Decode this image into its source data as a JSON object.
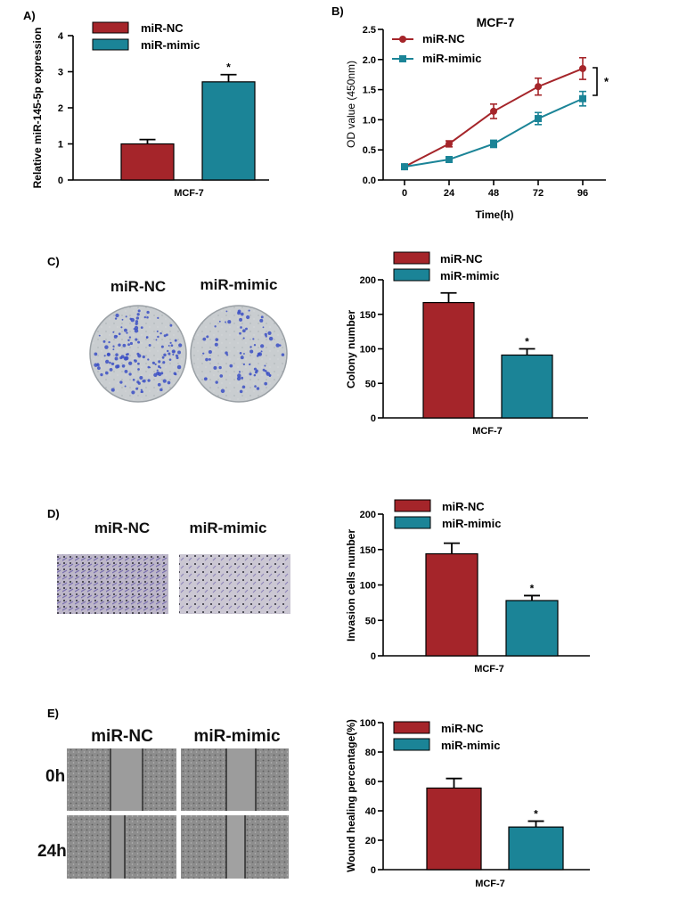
{
  "colors": {
    "nc": "#a5252a",
    "mimic": "#1b8497",
    "axis": "#000000"
  },
  "chart_data": [
    {
      "panel": "A)",
      "type": "bar",
      "categories": [
        "miR-NC",
        "miR-mimic"
      ],
      "values": [
        1.0,
        2.72
      ],
      "errors": [
        0.12,
        0.2
      ],
      "xlabel": "MCF-7",
      "ylabel": "Relative miR-145-5p expression",
      "ylim": [
        0,
        4
      ],
      "yticks": [
        "0",
        "1",
        "2",
        "3",
        "4"
      ],
      "legend": [
        "miR-NC",
        "miR-mimic"
      ],
      "significance": "*"
    },
    {
      "panel": "B)",
      "type": "line",
      "title": "MCF-7",
      "x": [
        0,
        24,
        48,
        72,
        96
      ],
      "xticks": [
        "0",
        "24",
        "48",
        "72",
        "96"
      ],
      "series": [
        {
          "name": "miR-NC",
          "values": [
            0.22,
            0.6,
            1.14,
            1.55,
            1.85
          ],
          "errors": [
            0.03,
            0.05,
            0.12,
            0.14,
            0.18
          ]
        },
        {
          "name": "miR-mimic",
          "values": [
            0.22,
            0.34,
            0.6,
            1.02,
            1.35
          ],
          "errors": [
            0.03,
            0.04,
            0.06,
            0.1,
            0.12
          ]
        }
      ],
      "xlabel": "Time(h)",
      "ylabel": "OD value (450nm)",
      "ylim": [
        0,
        2.5
      ],
      "yticks": [
        "0.0",
        "0.5",
        "1.0",
        "1.5",
        "2.0",
        "2.5"
      ],
      "significance": "*"
    },
    {
      "panel": "C)",
      "type": "bar",
      "categories": [
        "miR-NC",
        "miR-mimic"
      ],
      "values": [
        167,
        91
      ],
      "errors": [
        14,
        9
      ],
      "xlabel": "MCF-7",
      "ylabel": "Colony number",
      "ylim": [
        0,
        200
      ],
      "yticks": [
        "0",
        "50",
        "100",
        "150",
        "200"
      ],
      "legend": [
        "miR-NC",
        "miR-mimic"
      ],
      "significance": "*",
      "image_labels": [
        "miR-NC",
        "miR-mimic"
      ]
    },
    {
      "panel": "D)",
      "type": "bar",
      "categories": [
        "miR-NC",
        "miR-mimic"
      ],
      "values": [
        144,
        78
      ],
      "errors": [
        15,
        7
      ],
      "xlabel": "MCF-7",
      "ylabel": "Invasion cells number",
      "ylim": [
        0,
        200
      ],
      "yticks": [
        "0",
        "50",
        "100",
        "150",
        "200"
      ],
      "legend": [
        "miR-NC",
        "miR-mimic"
      ],
      "significance": "*",
      "image_labels": [
        "miR-NC",
        "miR-mimic"
      ]
    },
    {
      "panel": "E)",
      "type": "bar",
      "categories": [
        "miR-NC",
        "miR-mimic"
      ],
      "values": [
        55.5,
        29
      ],
      "errors": [
        6.5,
        4
      ],
      "xlabel": "MCF-7",
      "ylabel": "Wound healing percentage(%)",
      "ylim": [
        0,
        100
      ],
      "yticks": [
        "0",
        "20",
        "40",
        "60",
        "80",
        "100"
      ],
      "legend": [
        "miR-NC",
        "miR-mimic"
      ],
      "significance": "*",
      "image_labels": [
        "miR-NC",
        "miR-mimic"
      ],
      "row_labels": [
        "0h",
        "24h"
      ]
    }
  ]
}
